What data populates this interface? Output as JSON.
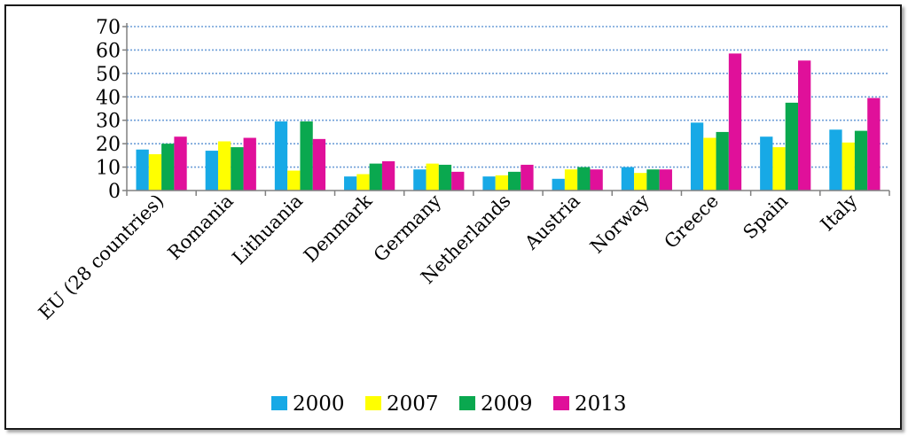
{
  "chart_data": {
    "type": "bar",
    "categories": [
      "EU (28 countries)",
      "Romania",
      "Lithuania",
      "Denmark",
      "Germany",
      "Netherlands",
      "Austria",
      "Norway",
      "Greece",
      "Spain",
      "Italy"
    ],
    "series": [
      {
        "name": "2000",
        "color": "#17a9e6",
        "values": [
          17.5,
          17,
          29.5,
          6,
          9,
          6,
          5,
          10,
          29,
          23,
          26
        ]
      },
      {
        "name": "2007",
        "color": "#ffff00",
        "values": [
          15.5,
          21,
          8.5,
          7,
          11.5,
          6.5,
          9,
          7.5,
          22.5,
          18.5,
          20.5
        ]
      },
      {
        "name": "2009",
        "color": "#0aa84f",
        "values": [
          20,
          18.5,
          29.5,
          11.5,
          11,
          8,
          10,
          9,
          25,
          37.5,
          25.5
        ]
      },
      {
        "name": "2013",
        "color": "#e0109a",
        "values": [
          23,
          22.5,
          22,
          12.5,
          8,
          11,
          9,
          9,
          58.5,
          55.5,
          39.5
        ]
      }
    ],
    "yticks": [
      "0",
      "10",
      "20",
      "30",
      "40",
      "50",
      "60",
      "70"
    ],
    "ylim": [
      0,
      70
    ],
    "grid": true,
    "legend": "bottom"
  }
}
